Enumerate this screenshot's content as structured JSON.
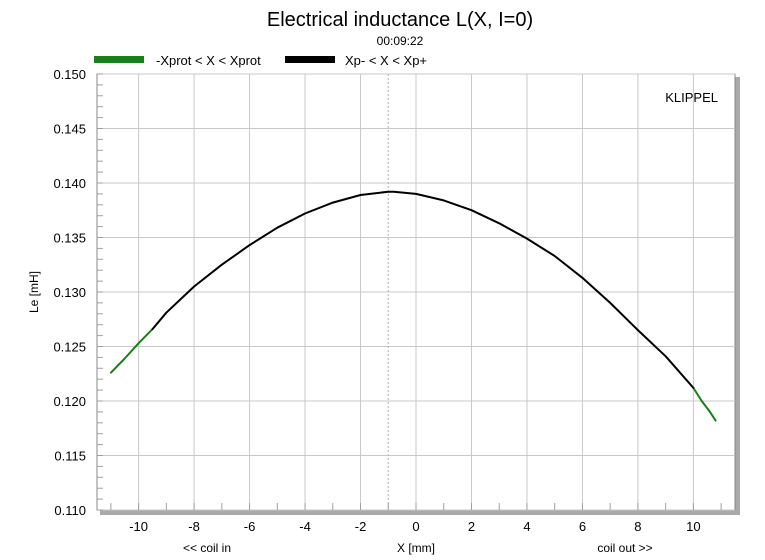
{
  "chart_data": {
    "type": "line",
    "title": "Electrical inductance L(X, I=0)",
    "subtitle": "00:09:22",
    "xlabel": "X [mm]",
    "xlabel_left": "<< coil in",
    "xlabel_right": "coil out >>",
    "ylabel": "Le [mH]",
    "brand": "KLIPPEL",
    "xlim": [
      -11.5,
      11.5
    ],
    "ylim": [
      0.11,
      0.15
    ],
    "xticks": [
      -10,
      -8,
      -6,
      -4,
      -2,
      0,
      2,
      4,
      6,
      8,
      10
    ],
    "xtick_labels": [
      "-10",
      "-8",
      "-6",
      "-4",
      "-2",
      "0",
      "2",
      "4",
      "6",
      "8",
      "10"
    ],
    "yticks": [
      0.11,
      0.115,
      0.12,
      0.125,
      0.13,
      0.135,
      0.14,
      0.145,
      0.15
    ],
    "ytick_labels": [
      "0.110",
      "0.115",
      "0.120",
      "0.125",
      "0.130",
      "0.135",
      "0.140",
      "0.145",
      "0.150"
    ],
    "grid": true,
    "legend_placement": "top-left",
    "series": [
      {
        "name": "-Xprot < X < Xprot",
        "color": "#1a7f1a",
        "segments": [
          {
            "x": [
              -11.0,
              -10.5,
              -10.0,
              -9.5
            ],
            "y": [
              0.1226,
              0.1239,
              0.1253,
              0.1266
            ]
          },
          {
            "x": [
              10.0,
              10.3,
              10.6,
              10.8
            ],
            "y": [
              0.1212,
              0.12,
              0.119,
              0.1182
            ]
          }
        ]
      },
      {
        "name": "Xp- < X < Xp+",
        "color": "#000000",
        "segments": [
          {
            "x": [
              -9.5,
              -9.0,
              -8.0,
              -7.0,
              -6.0,
              -5.0,
              -4.0,
              -3.0,
              -2.0,
              -1.0,
              -0.8,
              0.0,
              1.0,
              2.0,
              3.0,
              4.0,
              5.0,
              6.0,
              7.0,
              8.0,
              9.0,
              10.0
            ],
            "y": [
              0.1266,
              0.1281,
              0.1305,
              0.1325,
              0.1343,
              0.1359,
              0.1372,
              0.1382,
              0.1389,
              0.1392,
              0.1392,
              0.139,
              0.1384,
              0.1375,
              0.1363,
              0.1349,
              0.1333,
              0.1313,
              0.129,
              0.1265,
              0.1241,
              0.1212
            ]
          }
        ]
      }
    ]
  }
}
